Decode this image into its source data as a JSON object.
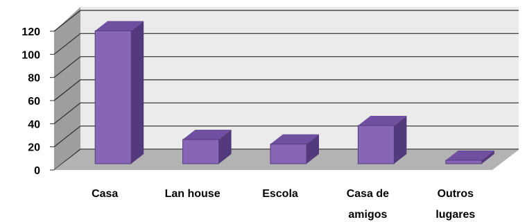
{
  "chart_data": {
    "type": "bar",
    "title": "",
    "xlabel": "",
    "ylabel": "",
    "ylim": [
      0,
      120
    ],
    "y_ticks": [
      0,
      20,
      40,
      60,
      80,
      100,
      120
    ],
    "grid": true,
    "style": "3d-columns",
    "categories": [
      {
        "lines": [
          "Casa"
        ]
      },
      {
        "lines": [
          "Lan house"
        ]
      },
      {
        "lines": [
          "Escola"
        ]
      },
      {
        "lines": [
          "Casa de",
          "amigos"
        ]
      },
      {
        "lines": [
          "Outros",
          "lugares"
        ]
      }
    ],
    "values": [
      115,
      21,
      17,
      33,
      3
    ]
  },
  "colors": {
    "bar_front": "#8866b6",
    "bar_top": "#6e4fa0",
    "bar_side": "#533a7c",
    "back_wall": "#ebebeb",
    "side_wall": "#9e9e9e",
    "floor": "#b3b3b3",
    "gridline": "#2b2b2b"
  }
}
